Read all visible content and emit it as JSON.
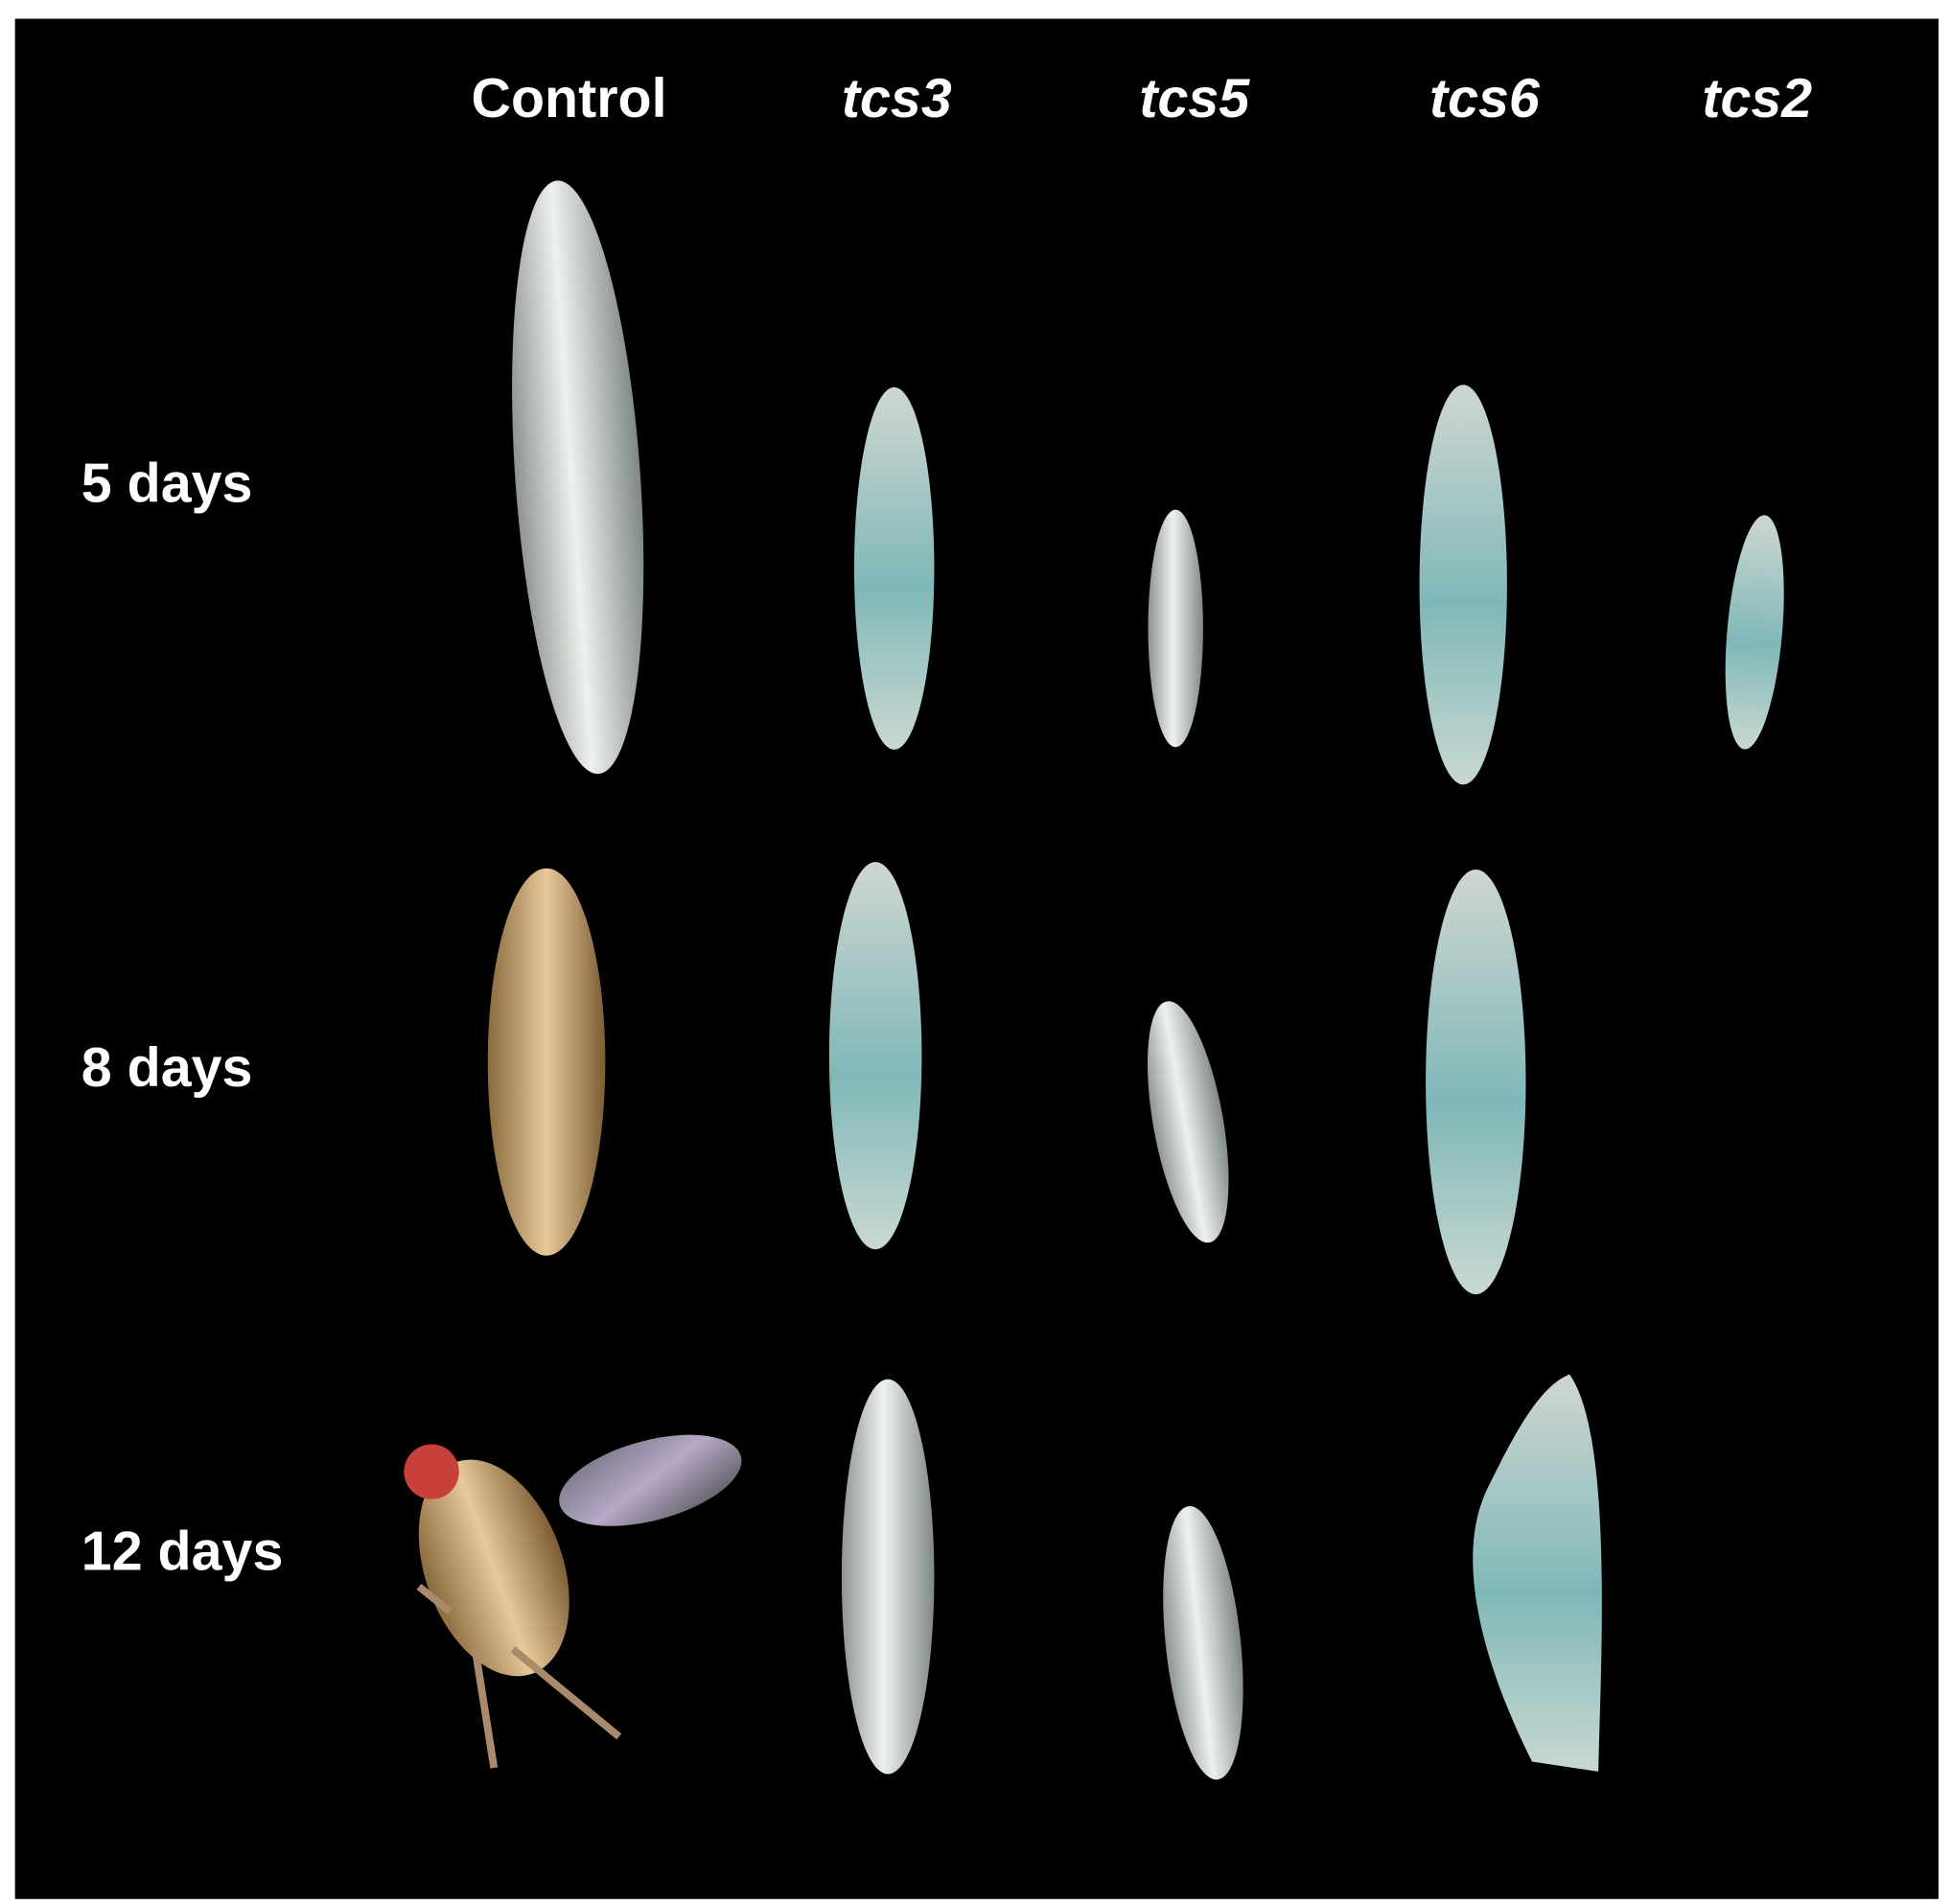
{
  "columns": [
    "Control",
    "tcs3",
    "tcs5",
    "tcs6",
    "tcs2"
  ],
  "rows": [
    "5 days",
    "8 days",
    "12 days"
  ]
}
